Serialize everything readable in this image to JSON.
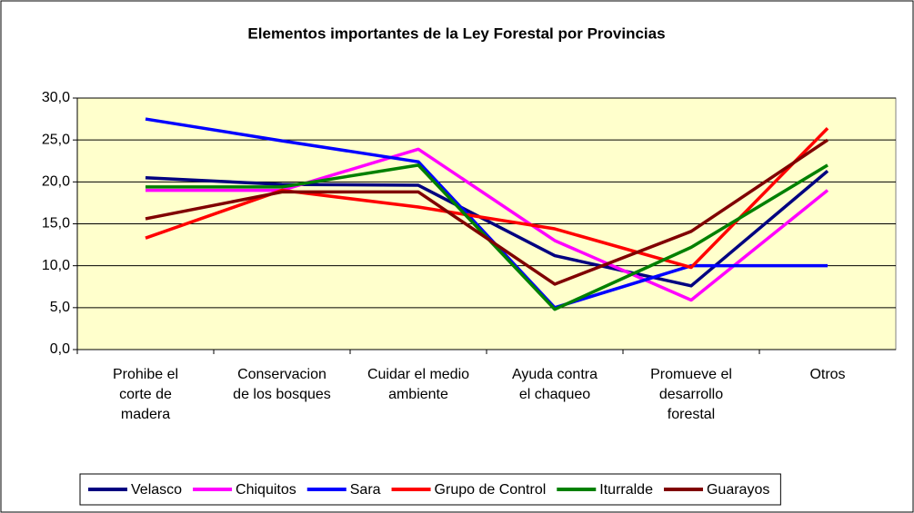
{
  "chart_data": {
    "type": "line",
    "title": "Elementos importantes de la Ley Forestal por Provincias",
    "categories": [
      "Prohibe el\ncorte de\nmadera",
      "Conservacion\nde los bosques",
      "Cuidar el medio\nambiente",
      "Ayuda contra\nel chaqueo",
      "Promueve el\ndesarrollo\nforestal",
      "Otros"
    ],
    "series": [
      {
        "name": "Velasco",
        "color": "#000080",
        "values": [
          20.5,
          19.7,
          19.6,
          11.2,
          7.6,
          21.3
        ]
      },
      {
        "name": "Chiquitos",
        "color": "#ff00ff",
        "values": [
          19.0,
          19.0,
          23.9,
          13.0,
          5.9,
          19.0
        ]
      },
      {
        "name": "Sara",
        "color": "#0000ff",
        "values": [
          27.5,
          24.9,
          22.4,
          5.0,
          10.0,
          10.0
        ]
      },
      {
        "name": "Grupo de Control",
        "color": "#ff0000",
        "values": [
          13.3,
          19.0,
          17.0,
          14.4,
          9.8,
          26.4
        ]
      },
      {
        "name": "Iturralde",
        "color": "#008000",
        "values": [
          19.4,
          19.4,
          22.0,
          4.8,
          12.2,
          22.0
        ]
      },
      {
        "name": "Guarayos",
        "color": "#800000",
        "values": [
          15.6,
          18.8,
          18.8,
          7.8,
          14.1,
          25.0
        ]
      }
    ],
    "ylim": [
      0,
      30
    ],
    "yticks": [
      {
        "value": 0,
        "label": "0,0"
      },
      {
        "value": 5,
        "label": "5,0"
      },
      {
        "value": 10,
        "label": "10,0"
      },
      {
        "value": 15,
        "label": "15,0"
      },
      {
        "value": 20,
        "label": "20,0"
      },
      {
        "value": 25,
        "label": "25,0"
      },
      {
        "value": 30,
        "label": "30,0"
      }
    ],
    "grid": true,
    "legend": "bottom",
    "plot_background": "#ffffcc"
  }
}
